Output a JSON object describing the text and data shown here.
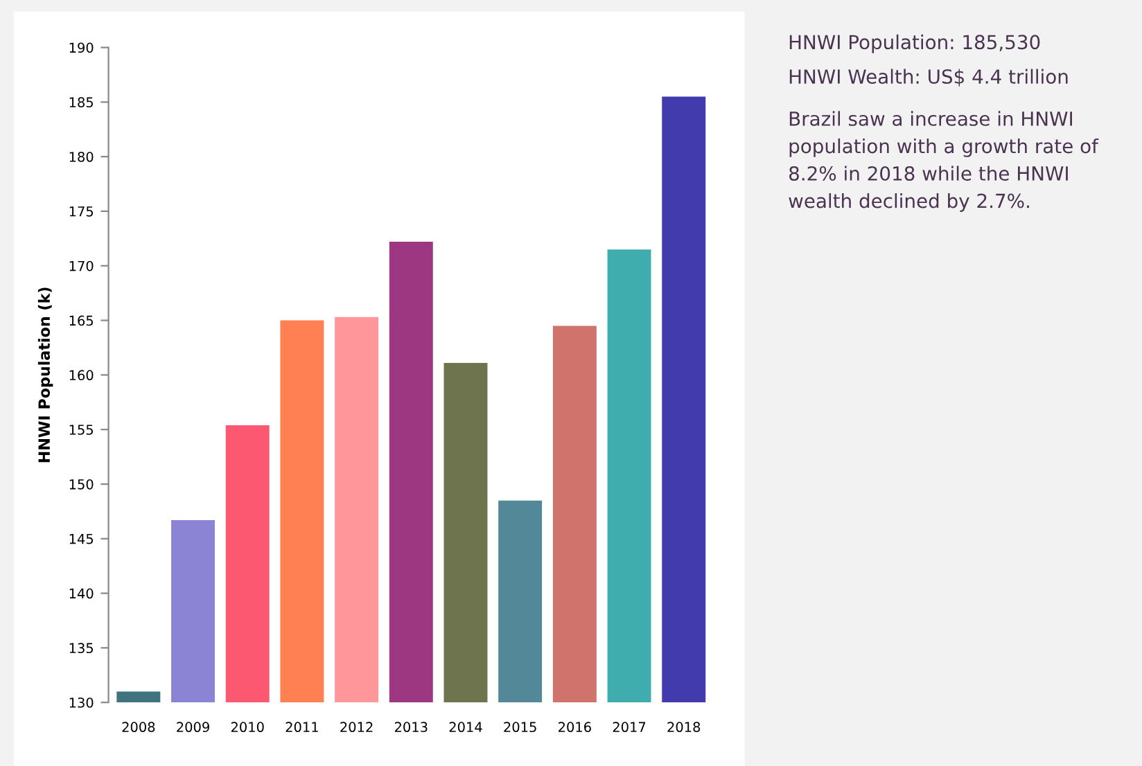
{
  "chart_data": {
    "type": "bar",
    "ylabel": "HNWI Population (k)",
    "categories": [
      "2008",
      "2009",
      "2010",
      "2011",
      "2012",
      "2013",
      "2014",
      "2015",
      "2016",
      "2017",
      "2018"
    ],
    "values": [
      131.0,
      146.7,
      155.4,
      165.0,
      165.3,
      172.2,
      161.1,
      148.5,
      164.5,
      171.5,
      185.5
    ],
    "colors": [
      "#3f7380",
      "#8b83d4",
      "#fc5872",
      "#ff8153",
      "#fe969a",
      "#9d3781",
      "#6e744e",
      "#538898",
      "#d0736c",
      "#3fadad",
      "#413bad"
    ],
    "ylim": [
      130,
      190
    ],
    "yticks": [
      130,
      135,
      140,
      145,
      150,
      155,
      160,
      165,
      170,
      175,
      180,
      185,
      190
    ],
    "grid": false,
    "annotations": [
      "HNWI Population: 185,530",
      "HNWI Wealth: US$ 4.4 trillion",
      "Brazil saw a increase in HNWI population with a growth rate of 8.2% in 2018 while the HNWI wealth declined by 2.7%."
    ]
  }
}
